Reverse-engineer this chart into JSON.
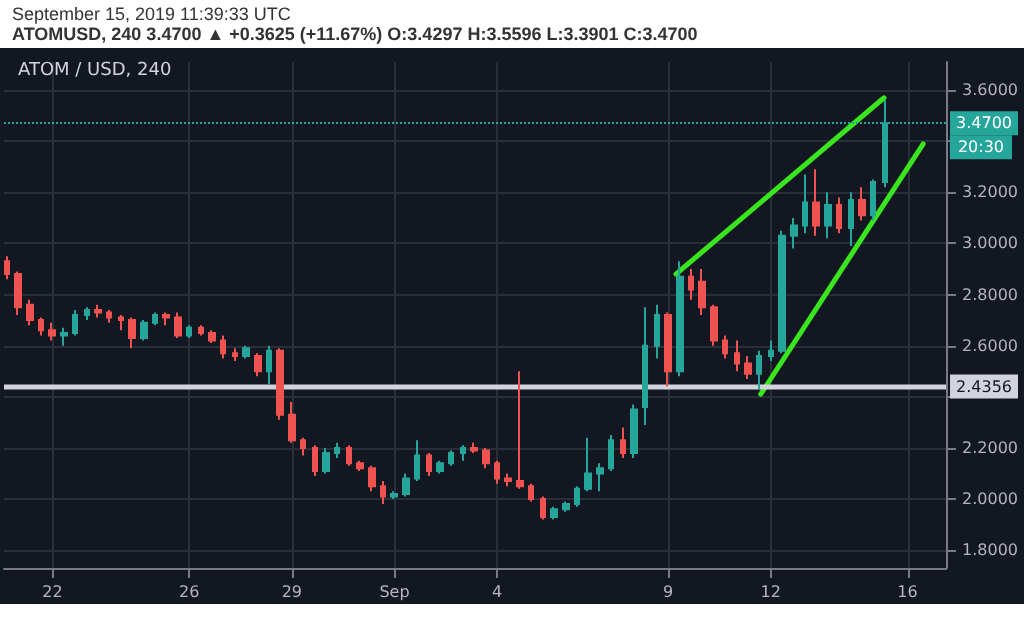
{
  "chart_data": {
    "type": "candlestick",
    "title": "ATOM / USD, 240",
    "subtitle": "September 15, 2019 11:39:33 UTC",
    "annotations": [
      "ATOMUSD, 240 3.4700 ▲ +0.3625 (+11.67%) O:3.4297 H:3.5596 L:3.3901 C:3.4700",
      "20:30"
    ],
    "series": [
      {
        "colors": [
          "#ef5350",
          "#ef5350",
          "#ef5350",
          "#ef5350",
          "#ef5350",
          "#26a69a",
          "#26a69a",
          "#26a69a",
          "#ef5350",
          "#ef5350",
          "#ef5350",
          "#ef5350",
          "#26a69a",
          "#26a69a",
          "#ef5350",
          "#ef5350",
          "#26a69a",
          "#ef5350",
          "#ef5350",
          "#ef5350",
          "#ef5350",
          "#26a69a",
          "#ef5350",
          "#26a69a",
          "#ef5350",
          "#ef5350",
          "#ef5350",
          "#ef5350",
          "#26a69a",
          "#26a69a",
          "#ef5350",
          "#ef5350",
          "#ef5350",
          "#ef5350",
          "#26a69a",
          "#26a69a",
          "#26a69a",
          "#ef5350",
          "#26a69a",
          "#26a69a",
          "#26a69a",
          "#ef5350",
          "#ef5350",
          "#ef5350",
          "#ef5350",
          "#ef5350",
          "#ef5350",
          "#ef5350",
          "#26a69a",
          "#26a69a",
          "#26a69a",
          "#26a69a",
          "#26a69a",
          "#26a69a",
          "#ef5350",
          "#26a69a",
          "#26a69a",
          "#26a69a",
          "#ef5350",
          "#26a69a",
          "#ef5350",
          "#ef5350",
          "#ef5350",
          "#ef5350",
          "#ef5350",
          "#ef5350",
          "#26a69a",
          "#26a69a",
          "#26a69a",
          "#26a69a",
          "#26a69a",
          "#ef5350",
          "#26a69a",
          "#ef5350",
          "#26a69a",
          "#ef5350",
          "#26a69a",
          "#26a69a"
        ],
        "x": [
          "2019-08-20T16:00",
          "2019-08-21T00:00",
          "2019-08-21T08:00",
          "2019-08-21T16:00",
          "2019-08-22T00:00",
          "2019-08-22T08:00",
          "2019-08-22T16:00",
          "2019-08-23T00:00",
          "2019-08-23T08:00",
          "2019-08-23T16:00",
          "2019-08-24T00:00",
          "2019-08-24T08:00",
          "2019-08-24T16:00",
          "2019-08-25T00:00",
          "2019-08-25T08:00",
          "2019-08-25T16:00",
          "2019-08-26T00:00",
          "2019-08-26T08:00",
          "2019-08-26T16:00",
          "2019-08-27T00:00",
          "2019-08-27T08:00",
          "2019-08-27T16:00",
          "2019-08-28T00:00",
          "2019-08-28T08:00",
          "2019-08-28T16:00",
          "2019-08-29T00:00",
          "2019-08-29T08:00",
          "2019-08-29T16:00",
          "2019-08-30T00:00",
          "2019-08-30T08:00",
          "2019-08-30T16:00",
          "2019-08-31T00:00",
          "2019-08-31T08:00",
          "2019-08-31T16:00",
          "2019-09-01T00:00",
          "2019-09-01T08:00",
          "2019-09-01T16:00",
          "2019-09-02T00:00",
          "2019-09-02T08:00",
          "2019-09-02T16:00",
          "2019-09-03T00:00",
          "2019-09-03T08:00",
          "2019-09-03T16:00",
          "2019-09-04T00:00",
          "2019-09-04T08:00",
          "2019-09-04T16:00",
          "2019-09-05T00:00",
          "2019-09-05T08:00",
          "2019-09-05T16:00",
          "2019-09-06T00:00",
          "2019-09-06T08:00",
          "2019-09-06T16:00",
          "2019-09-07T00:00",
          "2019-09-07T08:00",
          "2019-09-07T16:00",
          "2019-09-08T00:00",
          "2019-09-08T08:00",
          "2019-09-08T16:00",
          "2019-09-09T00:00",
          "2019-09-09T08:00",
          "2019-09-09T16:00",
          "2019-09-10T00:00",
          "2019-09-10T08:00",
          "2019-09-10T16:00",
          "2019-09-11T00:00",
          "2019-09-11T08:00",
          "2019-09-11T16:00",
          "2019-09-12T00:00",
          "2019-09-12T08:00",
          "2019-09-12T16:00",
          "2019-09-13T00:00",
          "2019-09-13T08:00",
          "2019-09-13T16:00",
          "2019-09-14T00:00",
          "2019-09-14T08:00",
          "2019-09-14T16:00",
          "2019-09-15T00:00",
          "2019-09-15T08:00"
        ],
        "ohlc": [
          [
            2.93,
            2.95,
            2.86,
            2.88
          ],
          [
            2.88,
            2.89,
            2.72,
            2.75
          ],
          [
            2.76,
            2.78,
            2.68,
            2.7
          ],
          [
            2.7,
            2.71,
            2.64,
            2.66
          ],
          [
            2.66,
            2.69,
            2.62,
            2.64
          ],
          [
            2.64,
            2.67,
            2.6,
            2.65
          ],
          [
            2.65,
            2.74,
            2.64,
            2.72
          ],
          [
            2.72,
            2.75,
            2.7,
            2.74
          ],
          [
            2.74,
            2.76,
            2.71,
            2.73
          ],
          [
            2.73,
            2.74,
            2.69,
            2.71
          ],
          [
            2.71,
            2.72,
            2.66,
            2.7
          ],
          [
            2.7,
            2.71,
            2.59,
            2.63
          ],
          [
            2.63,
            2.7,
            2.62,
            2.69
          ],
          [
            2.69,
            2.73,
            2.68,
            2.72
          ],
          [
            2.72,
            2.73,
            2.68,
            2.71
          ],
          [
            2.71,
            2.73,
            2.63,
            2.64
          ],
          [
            2.64,
            2.68,
            2.63,
            2.67
          ],
          [
            2.67,
            2.68,
            2.64,
            2.65
          ],
          [
            2.65,
            2.66,
            2.61,
            2.62
          ],
          [
            2.62,
            2.64,
            2.55,
            2.57
          ],
          [
            2.57,
            2.59,
            2.54,
            2.56
          ],
          [
            2.56,
            2.6,
            2.55,
            2.59
          ],
          [
            2.56,
            2.57,
            2.48,
            2.5
          ],
          [
            2.5,
            2.6,
            2.45,
            2.58
          ],
          [
            2.58,
            2.59,
            2.31,
            2.33
          ],
          [
            2.33,
            2.38,
            2.22,
            2.23
          ],
          [
            2.23,
            2.24,
            2.17,
            2.2
          ],
          [
            2.2,
            2.21,
            2.09,
            2.11
          ],
          [
            2.11,
            2.2,
            2.1,
            2.18
          ],
          [
            2.18,
            2.22,
            2.16,
            2.2
          ],
          [
            2.2,
            2.21,
            2.13,
            2.14
          ],
          [
            2.14,
            2.15,
            2.11,
            2.12
          ],
          [
            2.12,
            2.13,
            2.03,
            2.05
          ],
          [
            2.05,
            2.07,
            1.98,
            2.01
          ],
          [
            2.01,
            2.03,
            2.0,
            2.02
          ],
          [
            2.02,
            2.1,
            2.01,
            2.08
          ],
          [
            2.08,
            2.23,
            2.07,
            2.17
          ],
          [
            2.17,
            2.18,
            2.09,
            2.11
          ],
          [
            2.11,
            2.15,
            2.1,
            2.14
          ],
          [
            2.14,
            2.19,
            2.13,
            2.18
          ],
          [
            2.18,
            2.21,
            2.15,
            2.2
          ],
          [
            2.2,
            2.22,
            2.18,
            2.19
          ],
          [
            2.19,
            2.2,
            2.12,
            2.14
          ],
          [
            2.14,
            2.15,
            2.06,
            2.08
          ],
          [
            2.08,
            2.1,
            2.05,
            2.07
          ],
          [
            2.07,
            2.5,
            2.04,
            2.05
          ],
          [
            2.05,
            2.06,
            1.99,
            2.0
          ],
          [
            2.0,
            2.01,
            1.92,
            1.93
          ],
          [
            1.93,
            1.97,
            1.92,
            1.96
          ],
          [
            1.96,
            1.99,
            1.95,
            1.98
          ],
          [
            1.98,
            2.05,
            1.97,
            2.04
          ],
          [
            2.04,
            2.24,
            2.03,
            2.1
          ],
          [
            2.1,
            2.14,
            2.03,
            2.12
          ],
          [
            2.12,
            2.25,
            2.11,
            2.23
          ],
          [
            2.23,
            2.28,
            2.16,
            2.18
          ],
          [
            2.18,
            2.37,
            2.16,
            2.35
          ],
          [
            2.36,
            2.75,
            2.29,
            2.6
          ],
          [
            2.6,
            2.76,
            2.55,
            2.72
          ],
          [
            2.72,
            2.73,
            2.44,
            2.5
          ],
          [
            2.5,
            2.93,
            2.48,
            2.87
          ],
          [
            2.87,
            2.9,
            2.78,
            2.82
          ],
          [
            2.85,
            2.9,
            2.72,
            2.75
          ],
          [
            2.75,
            2.76,
            2.6,
            2.62
          ],
          [
            2.62,
            2.64,
            2.55,
            2.57
          ],
          [
            2.57,
            2.62,
            2.5,
            2.53
          ],
          [
            2.53,
            2.56,
            2.47,
            2.49
          ],
          [
            2.49,
            2.58,
            2.43,
            2.56
          ],
          [
            2.56,
            2.62,
            2.54,
            2.58
          ],
          [
            2.58,
            3.05,
            2.57,
            3.03
          ],
          [
            3.03,
            3.1,
            2.98,
            3.07
          ],
          [
            3.07,
            3.27,
            3.04,
            3.16
          ],
          [
            3.16,
            3.29,
            3.03,
            3.07
          ],
          [
            3.07,
            3.2,
            3.02,
            3.15
          ],
          [
            3.15,
            3.18,
            3.04,
            3.06
          ],
          [
            3.06,
            3.2,
            2.99,
            3.17
          ],
          [
            3.17,
            3.22,
            3.09,
            3.11
          ],
          [
            3.11,
            3.25,
            3.09,
            3.24
          ],
          [
            3.24,
            3.56,
            3.22,
            3.47
          ]
        ]
      },
      {
        "type": "line",
        "color": "#39e51e",
        "x": [
          "2019-09-09T05:30",
          "2019-09-15T07:30"
        ],
        "values": [
          2.88,
          3.57
        ]
      },
      {
        "type": "line",
        "color": "#39e51e",
        "x": [
          "2019-09-11T17:00",
          "2019-09-16T11:00"
        ],
        "values": [
          2.41,
          3.39
        ]
      }
    ],
    "xlim": [
      "2019-08-20T14:00",
      "2019-09-17T03:00"
    ],
    "xticks": [
      {
        "value": "2019-08-22",
        "label": "22"
      },
      {
        "value": "2019-08-26",
        "label": "26"
      },
      {
        "value": "2019-08-29",
        "label": "29"
      },
      {
        "value": "2019-09-01",
        "label": "Sep"
      },
      {
        "value": "2019-09-04",
        "label": "4"
      },
      {
        "value": "2019-09-09",
        "label": "9"
      },
      {
        "value": "2019-09-12",
        "label": "12"
      },
      {
        "value": "2019-09-16",
        "label": "16"
      }
    ],
    "ylim": [
      1.73,
      3.71
    ],
    "yticks": [
      {
        "value": 1.8,
        "label": "1.8000"
      },
      {
        "value": 2.0,
        "label": "2.0000"
      },
      {
        "value": 2.2,
        "label": "2.2000"
      },
      {
        "value": 2.4,
        "label": null
      },
      {
        "value": 2.6,
        "label": "2.6000"
      },
      {
        "value": 2.8,
        "label": "2.8000"
      },
      {
        "value": 3.0,
        "label": "3.0000"
      },
      {
        "value": 3.2,
        "label": "3.2000"
      },
      {
        "value": 3.4,
        "label": null
      },
      {
        "value": 3.6,
        "label": "3.6000"
      }
    ],
    "ref_lines": [
      {
        "axis": "y",
        "value": 2.4356,
        "label": "2.4356",
        "color": "#d1d4dc",
        "line_style": "solid"
      },
      {
        "axis": "y",
        "value": 3.47,
        "label": "3.4700",
        "color": "#26a69a",
        "line_style": "dotted"
      }
    ],
    "grid": true
  }
}
